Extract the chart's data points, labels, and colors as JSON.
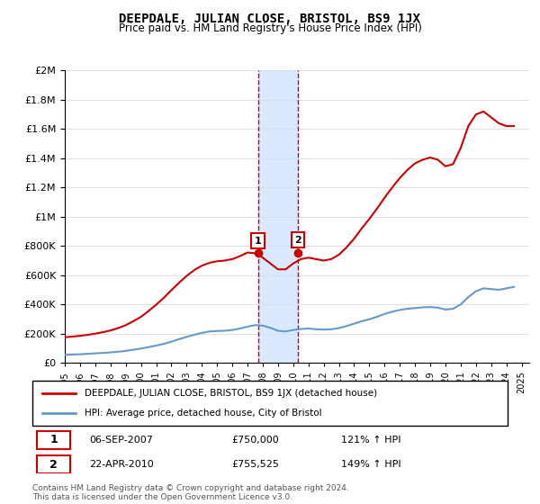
{
  "title": "DEEPDALE, JULIAN CLOSE, BRISTOL, BS9 1JX",
  "subtitle": "Price paid vs. HM Land Registry's House Price Index (HPI)",
  "legend_line1": "DEEPDALE, JULIAN CLOSE, BRISTOL, BS9 1JX (detached house)",
  "legend_line2": "HPI: Average price, detached house, City of Bristol",
  "footnote": "Contains HM Land Registry data © Crown copyright and database right 2024.\nThis data is licensed under the Open Government Licence v3.0.",
  "sale1_label": "1",
  "sale1_date": "06-SEP-2007",
  "sale1_price": "£750,000",
  "sale1_hpi": "121% ↑ HPI",
  "sale1_year": 2007.68,
  "sale2_label": "2",
  "sale2_date": "22-APR-2010",
  "sale2_price": "£755,525",
  "sale2_hpi": "149% ↑ HPI",
  "sale2_year": 2010.31,
  "red_color": "#cc0000",
  "blue_color": "#6699cc",
  "shade_color": "#cce0ff",
  "ylim": [
    0,
    2000000
  ],
  "xlim_start": 1995.0,
  "xlim_end": 2025.5,
  "hpi_data": {
    "years": [
      1995.0,
      1995.5,
      1996.0,
      1996.5,
      1997.0,
      1997.5,
      1998.0,
      1998.5,
      1999.0,
      1999.5,
      2000.0,
      2000.5,
      2001.0,
      2001.5,
      2002.0,
      2002.5,
      2003.0,
      2003.5,
      2004.0,
      2004.5,
      2005.0,
      2005.5,
      2006.0,
      2006.5,
      2007.0,
      2007.5,
      2008.0,
      2008.5,
      2009.0,
      2009.5,
      2010.0,
      2010.5,
      2011.0,
      2011.5,
      2012.0,
      2012.5,
      2013.0,
      2013.5,
      2014.0,
      2014.5,
      2015.0,
      2015.5,
      2016.0,
      2016.5,
      2017.0,
      2017.5,
      2018.0,
      2018.5,
      2019.0,
      2019.5,
      2020.0,
      2020.5,
      2021.0,
      2021.5,
      2022.0,
      2022.5,
      2023.0,
      2023.5,
      2024.0,
      2024.5
    ],
    "values": [
      55000,
      57000,
      59000,
      62000,
      65000,
      68000,
      72000,
      76000,
      82000,
      90000,
      98000,
      108000,
      118000,
      130000,
      145000,
      162000,
      178000,
      192000,
      205000,
      215000,
      218000,
      220000,
      225000,
      235000,
      248000,
      258000,
      255000,
      240000,
      220000,
      215000,
      225000,
      232000,
      235000,
      230000,
      228000,
      230000,
      238000,
      252000,
      268000,
      285000,
      298000,
      315000,
      335000,
      350000,
      362000,
      370000,
      375000,
      380000,
      382000,
      378000,
      365000,
      370000,
      400000,
      450000,
      490000,
      510000,
      505000,
      500000,
      510000,
      520000
    ]
  },
  "red_data": {
    "years": [
      1995.0,
      1995.5,
      1996.0,
      1996.5,
      1997.0,
      1997.5,
      1998.0,
      1998.5,
      1999.0,
      1999.5,
      2000.0,
      2000.5,
      2001.0,
      2001.5,
      2002.0,
      2002.5,
      2003.0,
      2003.5,
      2004.0,
      2004.5,
      2005.0,
      2005.5,
      2006.0,
      2006.5,
      2007.0,
      2007.5,
      2008.0,
      2008.5,
      2009.0,
      2009.5,
      2010.0,
      2010.5,
      2011.0,
      2011.5,
      2012.0,
      2012.5,
      2013.0,
      2013.5,
      2014.0,
      2014.5,
      2015.0,
      2015.5,
      2016.0,
      2016.5,
      2017.0,
      2017.5,
      2018.0,
      2018.5,
      2019.0,
      2019.5,
      2020.0,
      2020.5,
      2021.0,
      2021.5,
      2022.0,
      2022.5,
      2023.0,
      2023.5,
      2024.0,
      2024.5
    ],
    "values": [
      175000,
      180000,
      185000,
      192000,
      200000,
      210000,
      222000,
      238000,
      258000,
      285000,
      315000,
      355000,
      398000,
      445000,
      498000,
      548000,
      595000,
      635000,
      665000,
      685000,
      695000,
      700000,
      710000,
      730000,
      755000,
      750000,
      720000,
      680000,
      640000,
      640000,
      680000,
      710000,
      720000,
      710000,
      700000,
      710000,
      740000,
      790000,
      850000,
      920000,
      985000,
      1055000,
      1130000,
      1200000,
      1265000,
      1320000,
      1365000,
      1390000,
      1405000,
      1390000,
      1345000,
      1360000,
      1470000,
      1620000,
      1700000,
      1720000,
      1680000,
      1640000,
      1620000,
      1620000
    ]
  }
}
